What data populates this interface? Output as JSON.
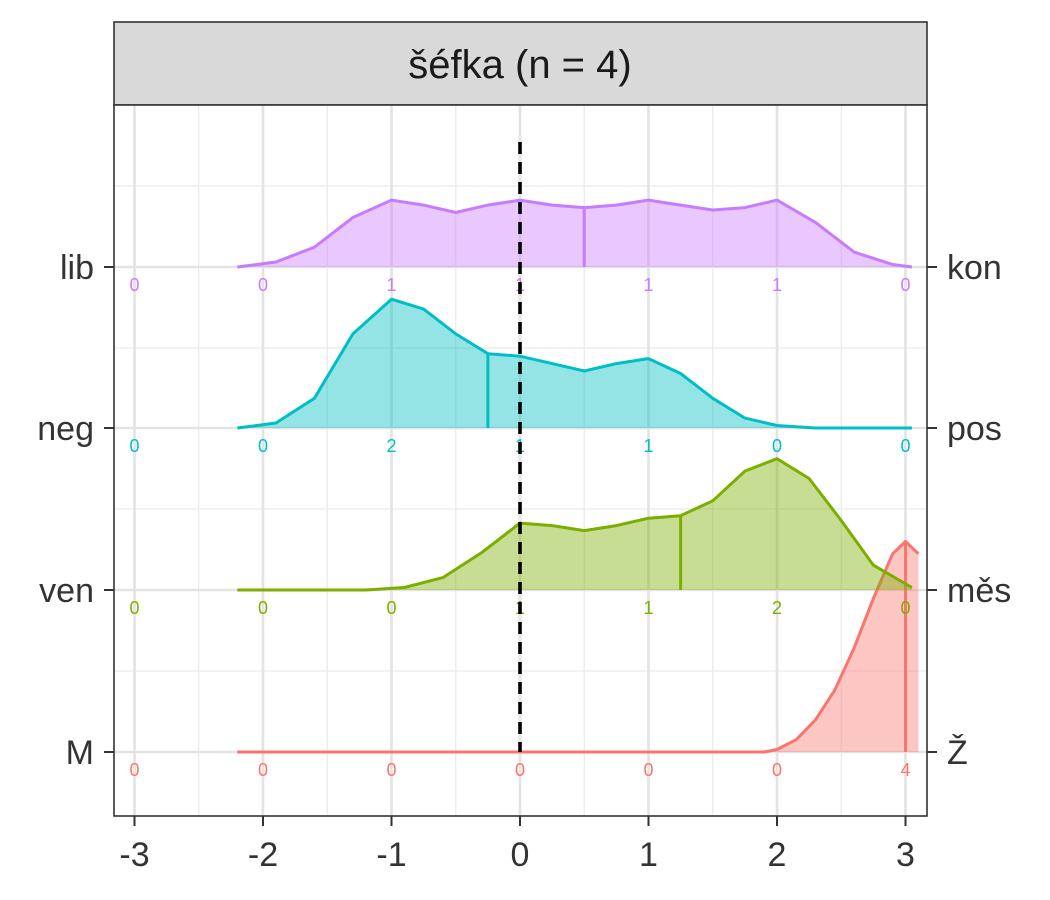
{
  "chart_data": {
    "type": "ridgeline",
    "title": "šéfka (n = 4)",
    "x_ticks": [
      -3,
      -2,
      -1,
      0,
      1,
      2,
      3
    ],
    "x_tick_labels": [
      "-3",
      "-2",
      "-1",
      "0",
      "1",
      "2",
      "3"
    ],
    "xlim": [
      -3.15,
      3.15
    ],
    "reference_line_x": 0,
    "rows": [
      {
        "left_label": "lib",
        "right_label": "kon",
        "color": "#C77CFF",
        "counts": [
          0,
          0,
          1,
          1,
          1,
          1,
          0
        ],
        "mean": 0.5,
        "density": [
          [
            -2.2,
            0
          ],
          [
            -1.9,
            0.02
          ],
          [
            -1.6,
            0.08
          ],
          [
            -1.3,
            0.2
          ],
          [
            -1.0,
            0.27
          ],
          [
            -0.75,
            0.25
          ],
          [
            -0.5,
            0.22
          ],
          [
            -0.25,
            0.25
          ],
          [
            0.0,
            0.27
          ],
          [
            0.25,
            0.25
          ],
          [
            0.5,
            0.24
          ],
          [
            0.75,
            0.25
          ],
          [
            1.0,
            0.27
          ],
          [
            1.25,
            0.25
          ],
          [
            1.5,
            0.23
          ],
          [
            1.75,
            0.24
          ],
          [
            2.0,
            0.27
          ],
          [
            2.3,
            0.18
          ],
          [
            2.6,
            0.06
          ],
          [
            2.9,
            0.01
          ],
          [
            3.05,
            0
          ]
        ]
      },
      {
        "left_label": "neg",
        "right_label": "pos",
        "color": "#00BFC4",
        "counts": [
          0,
          0,
          2,
          1,
          1,
          0,
          0
        ],
        "mean": -0.25,
        "density": [
          [
            -2.2,
            0
          ],
          [
            -1.9,
            0.02
          ],
          [
            -1.6,
            0.12
          ],
          [
            -1.3,
            0.38
          ],
          [
            -1.0,
            0.52
          ],
          [
            -0.75,
            0.48
          ],
          [
            -0.5,
            0.38
          ],
          [
            -0.25,
            0.3
          ],
          [
            0.0,
            0.29
          ],
          [
            0.25,
            0.26
          ],
          [
            0.5,
            0.23
          ],
          [
            0.75,
            0.26
          ],
          [
            1.0,
            0.28
          ],
          [
            1.25,
            0.22
          ],
          [
            1.5,
            0.12
          ],
          [
            1.75,
            0.04
          ],
          [
            2.0,
            0.01
          ],
          [
            2.3,
            0
          ],
          [
            3.05,
            0
          ]
        ]
      },
      {
        "left_label": "ven",
        "right_label": "měs",
        "color": "#7CAE00",
        "counts": [
          0,
          0,
          0,
          1,
          1,
          2,
          0
        ],
        "mean": 1.25,
        "density": [
          [
            -2.2,
            0
          ],
          [
            -1.2,
            0
          ],
          [
            -0.9,
            0.01
          ],
          [
            -0.6,
            0.05
          ],
          [
            -0.3,
            0.15
          ],
          [
            0.0,
            0.27
          ],
          [
            0.25,
            0.26
          ],
          [
            0.5,
            0.24
          ],
          [
            0.75,
            0.26
          ],
          [
            1.0,
            0.29
          ],
          [
            1.25,
            0.3
          ],
          [
            1.5,
            0.36
          ],
          [
            1.75,
            0.48
          ],
          [
            2.0,
            0.53
          ],
          [
            2.25,
            0.45
          ],
          [
            2.5,
            0.28
          ],
          [
            2.75,
            0.1
          ],
          [
            3.05,
            0.01
          ]
        ]
      },
      {
        "left_label": "M",
        "right_label": "Ž",
        "color": "#F8766D",
        "counts": [
          0,
          0,
          0,
          0,
          0,
          0,
          4
        ],
        "mean": 3,
        "density": [
          [
            -2.2,
            0
          ],
          [
            1.9,
            0
          ],
          [
            2.0,
            0.01
          ],
          [
            2.15,
            0.05
          ],
          [
            2.3,
            0.13
          ],
          [
            2.45,
            0.25
          ],
          [
            2.6,
            0.42
          ],
          [
            2.75,
            0.62
          ],
          [
            2.9,
            0.8
          ],
          [
            3.0,
            0.85
          ],
          [
            3.1,
            0.8
          ]
        ]
      }
    ]
  }
}
